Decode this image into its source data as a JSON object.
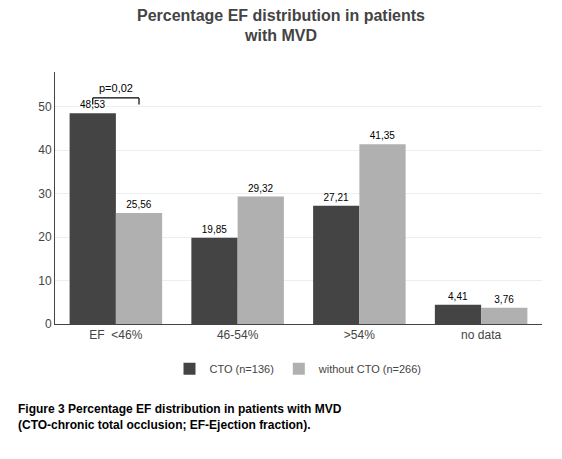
{
  "chart_data": {
    "type": "bar",
    "title": "Percentage EF distribution in patients\nwith MVD",
    "categories": [
      "EF  <46%",
      "46-54%",
      ">54%",
      "no data"
    ],
    "series": [
      {
        "name": "CTO (n=136)",
        "color": "#444444",
        "values": [
          48.53,
          19.85,
          27.21,
          4.41
        ],
        "value_labels": [
          "48,53",
          "19,85",
          "27,21",
          "4,41"
        ]
      },
      {
        "name": "without CTO (n=266)",
        "color": "#b0b0b0",
        "values": [
          25.56,
          29.32,
          41.35,
          3.76
        ],
        "value_labels": [
          "25,56",
          "29,32",
          "41,35",
          "3,76"
        ]
      }
    ],
    "ylim": [
      0,
      58
    ],
    "yticks": [
      0,
      10,
      20,
      30,
      40,
      50
    ],
    "grid": true,
    "legend": "bottom",
    "data_labels": true,
    "annotations": [
      {
        "text": "p=0,02",
        "category": "EF  <46%"
      },
      {
        "text": "Figure 3 Percentage EF distribution in patients with MVD\n(CTO-chronic total occlusion; EF-Ejection fraction)."
      }
    ]
  }
}
